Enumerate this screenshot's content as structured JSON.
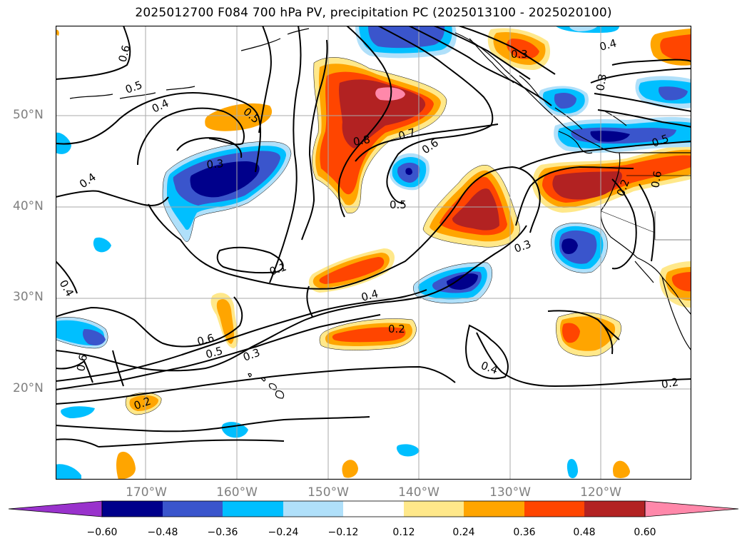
{
  "title": "2025012700 F084 700 hPa PV, precipitation PC (2025013100 - 2025020100)",
  "map": {
    "lat_labels": [
      "50°N",
      "40°N",
      "30°N",
      "20°N"
    ],
    "lon_labels": [
      "170°W",
      "160°W",
      "150°W",
      "140°W",
      "130°W",
      "120°W"
    ],
    "contour_labels": [
      "0.6",
      "0.5",
      "0.4",
      "0.5",
      "0.3",
      "0.4",
      "0.8",
      "0.7",
      "0.6",
      "0.5",
      "0.3",
      "0.4",
      "0.3",
      "0.5",
      "0.2",
      "0.6",
      "0.1",
      "0.4",
      "0.4",
      "0.6",
      "0.5",
      "0.3",
      "0.2",
      "0.4",
      "0.2",
      "0.3",
      "0.2",
      "0.6"
    ]
  },
  "colorbar": {
    "ticks": [
      "−0.60",
      "−0.48",
      "−0.36",
      "−0.24",
      "−0.12",
      "0.12",
      "0.24",
      "0.36",
      "0.48",
      "0.60"
    ],
    "colors": [
      "#9932cc",
      "#00008b",
      "#3a55cc",
      "#00bfff",
      "#b0e0fa",
      "#ffffff",
      "#ffe88a",
      "#ffa500",
      "#ff4500",
      "#b22222",
      "#ff88aa"
    ]
  }
}
